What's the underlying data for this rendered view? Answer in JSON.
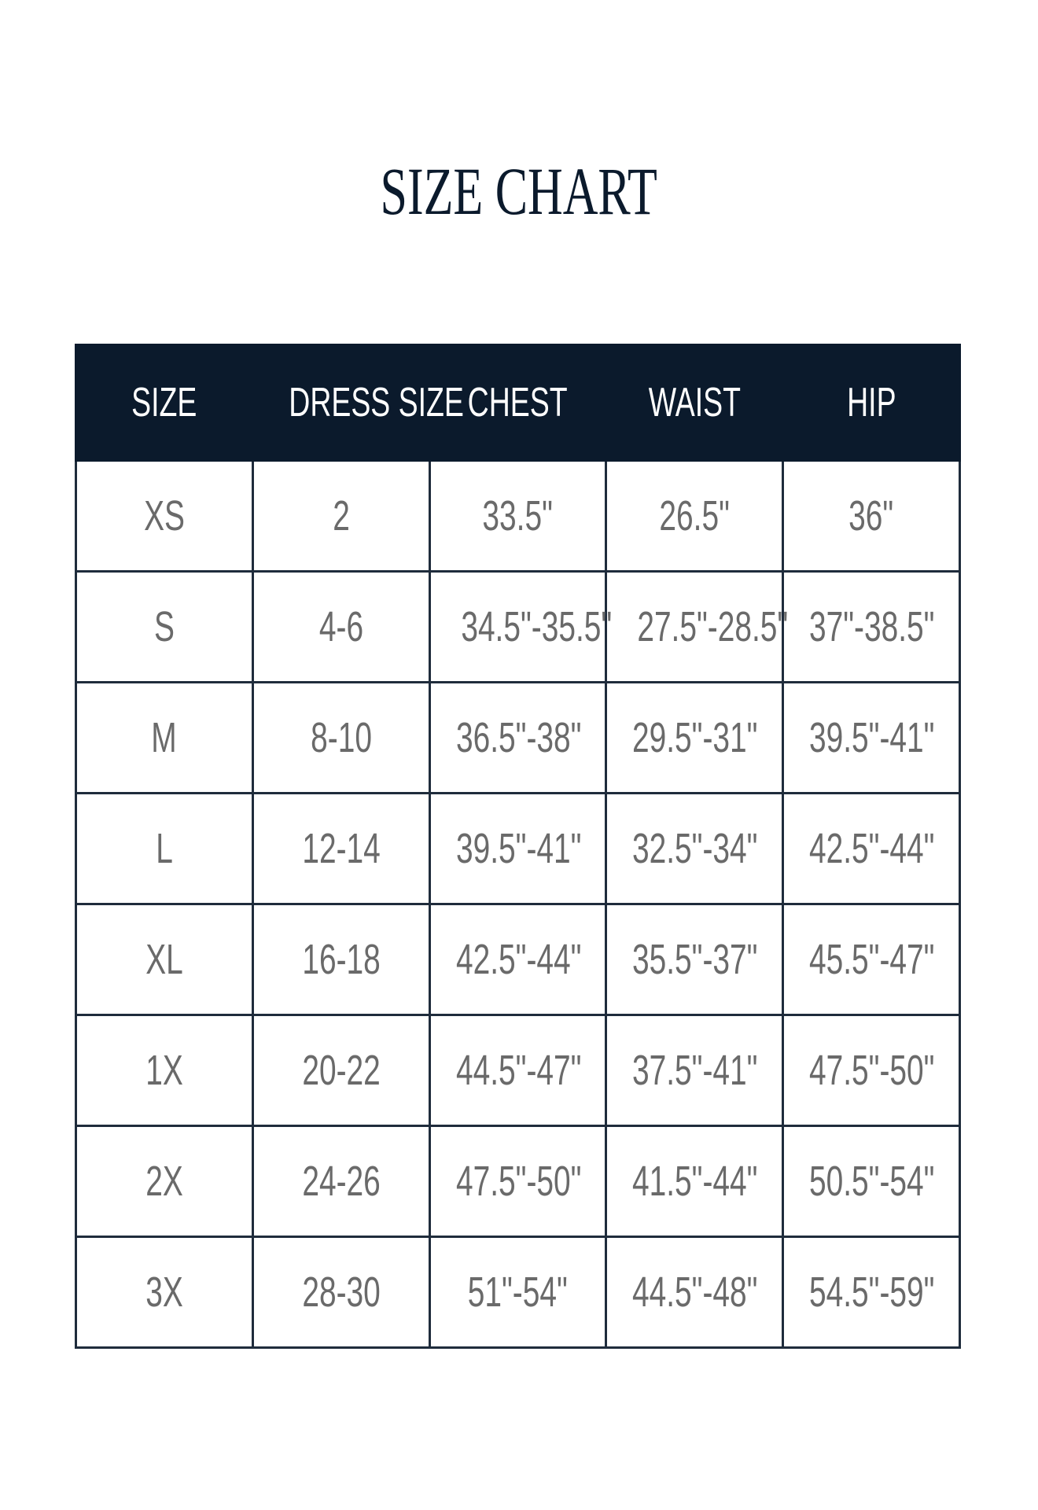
{
  "title": "SIZE CHART",
  "table": {
    "headers": [
      "SIZE",
      "DRESS SIZE",
      "CHEST",
      "WAIST",
      "HIP"
    ],
    "rows": [
      [
        "XS",
        "2",
        "33.5\"",
        "26.5\"",
        "36\""
      ],
      [
        "S",
        "4-6",
        "34.5\"-35.5\"",
        "27.5\"-28.5\"",
        "37\"-38.5\""
      ],
      [
        "M",
        "8-10",
        "36.5\"-38\"",
        "29.5\"-31\"",
        "39.5\"-41\""
      ],
      [
        "L",
        "12-14",
        "39.5\"-41\"",
        "32.5\"-34\"",
        "42.5\"-44\""
      ],
      [
        "XL",
        "16-18",
        "42.5\"-44\"",
        "35.5\"-37\"",
        "45.5\"-47\""
      ],
      [
        "1X",
        "20-22",
        "44.5\"-47\"",
        "37.5\"-41\"",
        "47.5\"-50\""
      ],
      [
        "2X",
        "24-26",
        "47.5\"-50\"",
        "41.5\"-44\"",
        "50.5\"-54\""
      ],
      [
        "3X",
        "28-30",
        "51\"-54\"",
        "44.5\"-48\"",
        "54.5\"-59\""
      ]
    ]
  }
}
